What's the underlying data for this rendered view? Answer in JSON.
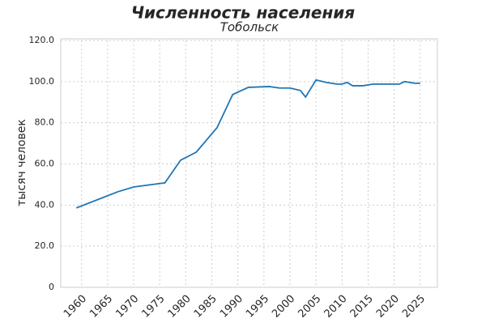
{
  "chart_data": {
    "type": "line",
    "title": "Численность населения",
    "subtitle": "Тобольск",
    "y_label": "тысяч человек",
    "x": [
      1959,
      1967,
      1970,
      1976,
      1979,
      1982,
      1986,
      1989,
      1992,
      1996,
      1998,
      2000,
      2002,
      2003,
      2005,
      2007,
      2009,
      2010,
      2011,
      2012,
      2013,
      2014,
      2015,
      2016,
      2017,
      2018,
      2019,
      2020,
      2021,
      2022,
      2023,
      2024,
      2025
    ],
    "series": [
      {
        "name": "Тобольск",
        "color": "#1f77b4",
        "values": [
          38.6,
          46.5,
          48.8,
          50.8,
          61.8,
          65.7,
          77.6,
          93.7,
          97.2,
          97.6,
          96.9,
          96.9,
          95.7,
          92.5,
          100.8,
          99.6,
          98.8,
          98.8,
          99.6,
          98.0,
          98.0,
          98.0,
          98.4,
          98.8,
          98.8,
          98.8,
          98.8,
          98.8,
          98.8,
          100.0,
          99.6,
          99.2,
          99.2
        ]
      }
    ],
    "xlim": [
      1956,
      2028.3
    ],
    "ylim": [
      0,
      120
    ],
    "xticks": [
      1960,
      1965,
      1970,
      1975,
      1980,
      1985,
      1990,
      1995,
      2000,
      2005,
      2010,
      2015,
      2020,
      2025
    ],
    "yticks": [
      0,
      {
        "value": 20,
        "label": "20.0"
      },
      {
        "value": 40,
        "label": "40.0"
      },
      {
        "value": 60,
        "label": "60.0"
      },
      {
        "value": 80,
        "label": "80.0"
      },
      {
        "value": 100,
        "label": "100.0"
      },
      {
        "value": 120,
        "label": "120.0"
      }
    ],
    "grid": true
  }
}
